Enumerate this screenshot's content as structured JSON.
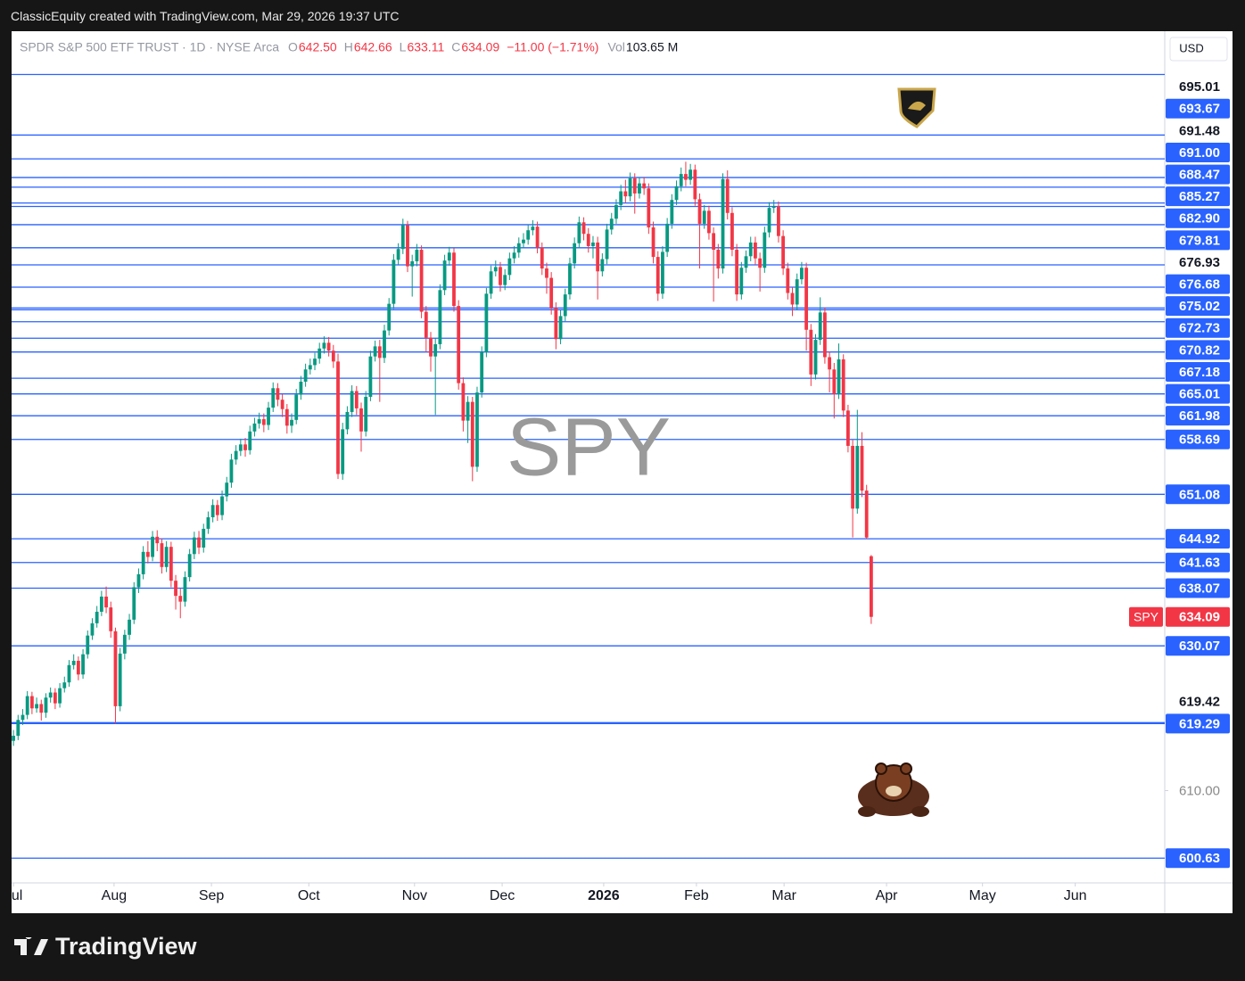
{
  "attribution": "ClassicEquity created with TradingView.com, Mar 29, 2026 19:37 UTC",
  "brand": "TradingView",
  "chart_data": {
    "type": "candlestick",
    "watermark": "SPY",
    "currency": "USD",
    "legend": {
      "symbol": "SPDR S&P 500 ETF TRUST · 1D · NYSE Arca",
      "ohlc": [
        {
          "key": "O",
          "value": "642.50"
        },
        {
          "key": "H",
          "value": "642.66"
        },
        {
          "key": "L",
          "value": "633.11"
        },
        {
          "key": "C",
          "value": "634.09"
        }
      ],
      "change": "−11.00 (−1.71%)",
      "volume": {
        "key": "Vol",
        "value": "103.65 M"
      }
    },
    "colors": {
      "up": "#089981",
      "down": "#f23645",
      "level": "#2962ff"
    },
    "xlim": [
      -0.4,
      248.3
    ],
    "xticks": [
      {
        "value": 0,
        "label": "Jul"
      },
      {
        "value": 21.7,
        "label": "Aug"
      },
      {
        "value": 42.7,
        "label": "Sep"
      },
      {
        "value": 63.7,
        "label": "Oct"
      },
      {
        "value": 86.5,
        "label": "Nov"
      },
      {
        "value": 105.4,
        "label": "Dec"
      },
      {
        "value": 127.3,
        "label": "2026"
      },
      {
        "value": 147.3,
        "label": "Feb"
      },
      {
        "value": 166.2,
        "label": "Mar"
      },
      {
        "value": 188.3,
        "label": "Apr"
      },
      {
        "value": 209,
        "label": "May"
      },
      {
        "value": 229,
        "label": "Jun"
      }
    ],
    "ylim": [
      597.2,
      715.3
    ],
    "yticks": [
      {
        "value": 610,
        "label": "610.00"
      }
    ],
    "last_price": {
      "symbol": "SPY",
      "value": 634.09,
      "label": "634.09"
    },
    "levels": [
      {
        "value": 695.01,
        "label": "695.01",
        "boxed": false
      },
      {
        "value": 693.67,
        "label": "693.67",
        "boxed": true
      },
      {
        "value": 691.48,
        "label": "691.48",
        "boxed": false
      },
      {
        "value": 691.0,
        "label": "691.00",
        "boxed": true
      },
      {
        "value": 688.47,
        "label": "688.47",
        "boxed": true
      },
      {
        "value": 685.27,
        "label": "685.27",
        "boxed": true
      },
      {
        "value": 682.9,
        "label": "682.90",
        "boxed": true
      },
      {
        "value": 679.81,
        "label": "679.81",
        "boxed": true
      },
      {
        "value": 676.93,
        "label": "676.93",
        "boxed": false
      },
      {
        "value": 676.68,
        "label": "676.68",
        "boxed": true
      },
      {
        "value": 675.02,
        "label": "675.02",
        "boxed": true
      },
      {
        "value": 672.73,
        "label": "672.73",
        "boxed": true
      },
      {
        "value": 670.82,
        "label": "670.82",
        "boxed": true
      },
      {
        "value": 667.18,
        "label": "667.18",
        "boxed": true
      },
      {
        "value": 665.01,
        "label": "665.01",
        "boxed": true
      },
      {
        "value": 661.98,
        "label": "661.98",
        "boxed": true
      },
      {
        "value": 658.69,
        "label": "658.69",
        "boxed": true
      },
      {
        "value": 651.08,
        "label": "651.08",
        "boxed": true
      },
      {
        "value": 644.92,
        "label": "644.92",
        "boxed": true
      },
      {
        "value": 641.63,
        "label": "641.63",
        "boxed": true
      },
      {
        "value": 638.07,
        "label": "638.07",
        "boxed": true
      },
      {
        "value": 630.07,
        "label": "630.07",
        "boxed": true
      },
      {
        "value": 619.42,
        "label": "619.42",
        "boxed": false
      },
      {
        "value": 619.29,
        "label": "619.29",
        "boxed": true
      },
      {
        "value": 600.63,
        "label": "600.63",
        "boxed": true
      }
    ],
    "unlabeled_levels": [
      697.6,
      700.9,
      709.3
    ],
    "open": [
      616.9,
      617.6,
      619.8,
      620.5,
      623.1,
      621.4,
      622.0,
      620.8,
      622.9,
      623.6,
      622.1,
      624.2,
      625.0,
      627.4,
      628.0,
      626.1,
      628.9,
      631.5,
      633.2,
      634.8,
      636.9,
      635.4,
      632.1,
      621.7,
      629.0,
      631.6,
      633.7,
      638.2,
      640.0,
      643.1,
      642.4,
      645.2,
      644.3,
      641.0,
      643.8,
      639.1,
      637.0,
      636.2,
      639.6,
      642.8,
      645.1,
      643.7,
      646.3,
      647.9,
      649.6,
      648.2,
      650.8,
      652.7,
      655.9,
      657.1,
      658.0,
      657.2,
      659.8,
      660.9,
      661.5,
      660.7,
      663.1,
      665.8,
      664.2,
      662.9,
      660.6,
      661.4,
      664.9,
      666.7,
      668.4,
      669.0,
      669.9,
      671.3,
      672.1,
      671.0,
      669.5,
      653.9,
      660.1,
      662.5,
      665.4,
      663.0,
      659.8,
      664.6,
      670.2,
      671.6,
      670.0,
      673.8,
      677.5,
      683.6,
      685.1,
      688.4,
      682.7,
      683.4,
      685.0,
      676.4,
      672.8,
      670.2,
      671.9,
      679.4,
      683.5,
      684.6,
      677.2,
      666.5,
      661.3,
      663.9,
      654.9,
      665.2,
      670.8,
      678.9,
      682.0,
      682.6,
      680.1,
      681.5,
      683.8,
      684.6,
      685.9,
      686.4,
      687.7,
      688.2,
      685.3,
      682.4,
      681.1,
      676.9,
      672.6,
      675.8,
      678.8,
      683.1,
      685.9,
      688.8,
      687.2,
      685.5,
      686.0,
      682.0,
      683.7,
      687.8,
      689.3,
      691.2,
      693.1,
      692.4,
      694.9,
      692.8,
      694.2,
      693.5,
      688.1,
      684.0,
      678.9,
      684.7,
      688.6,
      691.9,
      693.8,
      695.5,
      694.7,
      696.1,
      692.0,
      688.6,
      690.4,
      687.3,
      685.0,
      682.4,
      694.8,
      690.1,
      685.0,
      678.8,
      682.5,
      684.1,
      686.0,
      683.8,
      682.5,
      687.4,
      690.8,
      691.0,
      686.9,
      682.4,
      679.0,
      677.4,
      680.9,
      682.5,
      673.9,
      667.7,
      672.5,
      676.3,
      670.1,
      668.4,
      665.0,
      669.8,
      662.7,
      657.8,
      649.1,
      657.8,
      651.6,
      642.5
    ],
    "high": [
      618.4,
      620.5,
      621.3,
      623.8,
      623.7,
      622.9,
      622.6,
      623.5,
      624.3,
      624.2,
      624.9,
      625.8,
      628.1,
      628.9,
      628.6,
      629.6,
      632.2,
      633.9,
      635.6,
      637.7,
      638.3,
      636.2,
      632.6,
      629.8,
      632.3,
      634.5,
      638.9,
      640.8,
      643.9,
      644.6,
      646.0,
      646.1,
      645.0,
      644.6,
      644.5,
      639.9,
      638.0,
      640.4,
      643.5,
      645.9,
      646.0,
      647.0,
      648.7,
      650.4,
      650.3,
      651.6,
      653.5,
      656.7,
      657.9,
      658.8,
      658.9,
      660.6,
      661.7,
      662.4,
      662.3,
      663.9,
      666.6,
      666.5,
      665.0,
      663.6,
      662.3,
      665.7,
      667.5,
      669.2,
      669.9,
      670.7,
      672.1,
      673.0,
      672.9,
      671.8,
      670.6,
      661.0,
      663.3,
      666.2,
      666.1,
      663.8,
      665.4,
      671.0,
      672.4,
      672.5,
      674.6,
      678.3,
      684.4,
      685.9,
      689.3,
      689.0,
      684.3,
      685.8,
      685.6,
      677.2,
      673.6,
      672.7,
      680.2,
      684.3,
      685.4,
      685.2,
      678.0,
      667.3,
      664.7,
      664.6,
      666.0,
      671.6,
      679.7,
      682.8,
      683.5,
      683.3,
      682.3,
      684.6,
      685.5,
      686.7,
      687.3,
      688.5,
      689.1,
      688.9,
      686.0,
      683.2,
      681.9,
      677.7,
      676.6,
      679.6,
      683.9,
      686.7,
      689.6,
      689.5,
      688.0,
      686.9,
      686.8,
      684.5,
      688.6,
      690.1,
      692.0,
      694.0,
      694.7,
      695.7,
      695.6,
      695.0,
      695.1,
      694.2,
      688.9,
      684.8,
      685.5,
      689.4,
      692.7,
      694.6,
      696.4,
      697.2,
      696.9,
      696.8,
      692.8,
      691.2,
      691.1,
      688.1,
      685.8,
      695.6,
      696.0,
      690.9,
      685.8,
      683.3,
      684.9,
      686.8,
      686.8,
      684.6,
      688.2,
      691.6,
      691.9,
      691.7,
      687.7,
      683.2,
      679.8,
      681.7,
      683.3,
      683.2,
      674.7,
      673.3,
      678.4,
      677.0,
      670.9,
      669.3,
      672.0,
      670.5,
      663.5,
      658.6,
      662.8,
      659.7,
      652.4,
      642.66
    ],
    "low": [
      616.2,
      617.0,
      619.1,
      619.9,
      620.6,
      620.8,
      619.7,
      620.1,
      622.2,
      621.3,
      621.5,
      623.6,
      624.4,
      626.8,
      625.3,
      625.5,
      628.3,
      630.9,
      632.6,
      634.2,
      634.6,
      631.2,
      619.3,
      621.0,
      628.2,
      630.9,
      633.1,
      637.4,
      639.3,
      641.5,
      641.8,
      643.2,
      640.1,
      640.3,
      638.2,
      635.1,
      633.9,
      635.5,
      639.0,
      642.1,
      642.8,
      643.0,
      645.6,
      647.2,
      647.4,
      647.5,
      650.1,
      652.0,
      655.2,
      656.4,
      656.3,
      656.6,
      659.1,
      660.2,
      659.7,
      660.0,
      662.5,
      663.3,
      661.8,
      659.5,
      659.6,
      660.8,
      664.2,
      666.0,
      667.7,
      668.3,
      669.2,
      670.6,
      670.2,
      668.6,
      653.2,
      653.1,
      659.4,
      661.8,
      662.1,
      657.0,
      659.1,
      664.0,
      669.5,
      663.9,
      669.3,
      673.1,
      676.8,
      682.9,
      684.4,
      681.9,
      678.5,
      682.7,
      675.5,
      670.8,
      668.1,
      662.1,
      671.2,
      678.7,
      682.8,
      676.4,
      665.6,
      659.8,
      658.2,
      652.9,
      654.2,
      664.5,
      670.1,
      678.2,
      681.3,
      679.2,
      679.4,
      680.8,
      683.1,
      683.9,
      685.2,
      685.7,
      687.0,
      684.5,
      681.5,
      678.9,
      676.0,
      671.2,
      671.9,
      675.1,
      678.1,
      682.4,
      685.2,
      686.3,
      684.6,
      683.8,
      678.1,
      681.3,
      683.0,
      687.1,
      688.6,
      690.5,
      691.5,
      691.7,
      690.0,
      692.1,
      692.6,
      687.2,
      683.1,
      677.9,
      678.2,
      684.0,
      687.9,
      691.2,
      693.1,
      693.8,
      694.0,
      691.1,
      682.4,
      687.9,
      686.4,
      677.8,
      681.0,
      681.7,
      689.2,
      684.1,
      677.9,
      678.1,
      681.8,
      683.4,
      682.9,
      679.2,
      681.8,
      686.7,
      690.1,
      686.0,
      681.5,
      678.1,
      675.8,
      676.7,
      680.2,
      671.0,
      666.1,
      667.0,
      671.8,
      669.2,
      665.2,
      661.6,
      664.3,
      661.8,
      656.9,
      645.1,
      648.4,
      650.7,
      644.9,
      633.11
    ],
    "close": [
      617.6,
      619.8,
      620.5,
      623.1,
      621.4,
      622.0,
      620.8,
      622.9,
      623.6,
      622.1,
      624.2,
      625.0,
      627.4,
      628.0,
      626.1,
      628.9,
      631.5,
      633.2,
      634.8,
      636.9,
      635.4,
      632.1,
      621.7,
      629.0,
      631.6,
      633.7,
      638.2,
      640.0,
      643.1,
      642.4,
      645.2,
      644.3,
      641.0,
      643.8,
      639.1,
      637.0,
      636.2,
      639.6,
      642.8,
      645.1,
      643.7,
      646.3,
      647.9,
      649.6,
      648.2,
      650.8,
      652.7,
      655.9,
      657.1,
      658.0,
      657.2,
      659.8,
      660.9,
      661.5,
      660.7,
      663.1,
      665.8,
      664.2,
      662.9,
      660.6,
      661.4,
      664.9,
      666.7,
      668.4,
      669.0,
      669.9,
      671.3,
      672.1,
      671.0,
      669.5,
      653.9,
      660.1,
      662.5,
      665.4,
      663.0,
      659.8,
      664.6,
      670.2,
      671.6,
      670.0,
      673.8,
      677.5,
      683.6,
      685.1,
      688.4,
      682.7,
      683.4,
      685.0,
      676.4,
      672.8,
      670.2,
      671.9,
      679.4,
      683.5,
      684.6,
      677.2,
      666.5,
      661.3,
      663.9,
      654.9,
      665.2,
      670.8,
      678.9,
      682.0,
      682.6,
      680.1,
      681.5,
      683.8,
      684.6,
      685.9,
      686.4,
      687.7,
      688.2,
      685.3,
      682.4,
      681.1,
      676.9,
      672.6,
      675.8,
      678.8,
      683.1,
      685.9,
      688.8,
      687.2,
      685.5,
      686.0,
      682.0,
      683.7,
      687.8,
      689.3,
      691.2,
      693.1,
      692.4,
      694.9,
      692.8,
      694.2,
      693.5,
      688.1,
      684.0,
      678.9,
      684.7,
      688.6,
      691.9,
      693.8,
      695.5,
      694.7,
      696.1,
      692.0,
      688.6,
      690.4,
      687.3,
      685.0,
      682.4,
      694.8,
      690.1,
      685.0,
      678.8,
      682.5,
      684.1,
      686.0,
      683.8,
      682.5,
      687.4,
      690.8,
      691.0,
      686.9,
      682.4,
      679.0,
      677.4,
      680.9,
      682.5,
      673.9,
      667.7,
      672.5,
      676.3,
      670.1,
      668.4,
      665.0,
      669.8,
      662.7,
      657.8,
      649.1,
      657.8,
      651.6,
      645.09,
      634.09
    ]
  }
}
